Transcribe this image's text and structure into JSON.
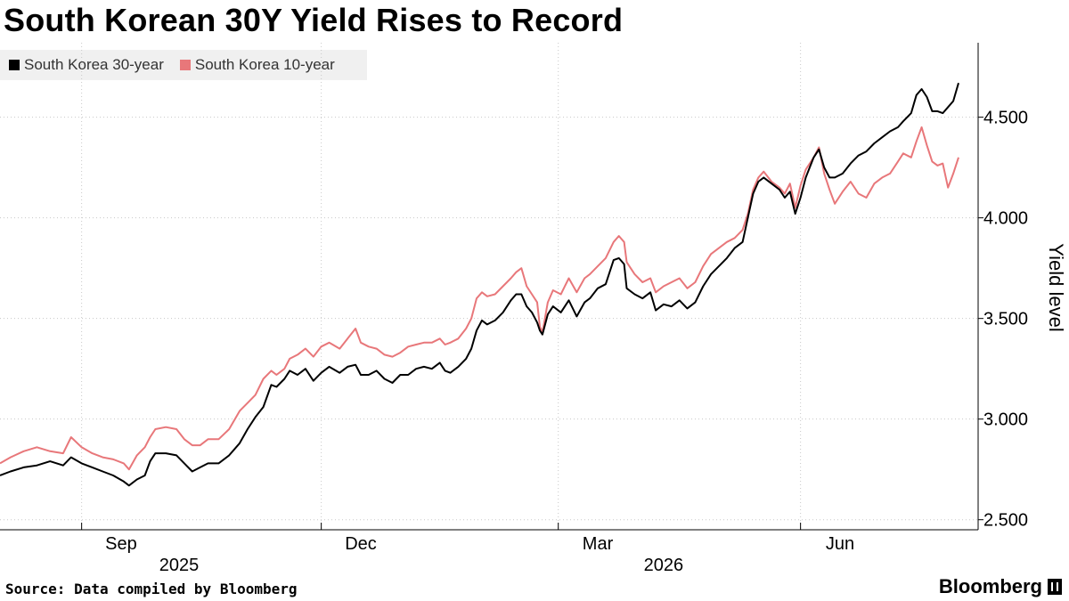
{
  "header": {
    "title": "South Korean 30Y Yield Rises to Record"
  },
  "legend": {
    "items": [
      {
        "label": "South Korea 30-year",
        "color": "#000000"
      },
      {
        "label": "South Korea 10-year",
        "color": "#e8777a"
      }
    ]
  },
  "footer": {
    "source": "Source: Data compiled by Bloomberg",
    "brand": "Bloomberg"
  },
  "chart_data": {
    "type": "line",
    "title": "South Korean 30Y Yield Rises to Record",
    "ylabel": "Yield level",
    "xlabel": "",
    "ylim": [
      2.45,
      4.87
    ],
    "y_ticks": [
      2.5,
      3.0,
      3.5,
      4.0,
      4.5
    ],
    "y_tick_labels": [
      "2.500",
      "3.000",
      "3.500",
      "4.000",
      "4.500"
    ],
    "x_range": [
      "2025-08-01",
      "2026-07-31"
    ],
    "x_tick_labels": [
      {
        "label": "Sep",
        "date": "2025-09-16"
      },
      {
        "label": "Dec",
        "date": "2025-12-16"
      },
      {
        "label": "Mar",
        "date": "2026-03-16"
      },
      {
        "label": "Jun",
        "date": "2026-06-16"
      }
    ],
    "x_year_labels": [
      {
        "label": "2025",
        "date": "2025-10-08"
      },
      {
        "label": "2026",
        "date": "2026-04-10"
      }
    ],
    "x_dividers": [
      "2025-09-01",
      "2025-12-01",
      "2026-03-01",
      "2026-06-01"
    ],
    "grid": true,
    "legend_position": "top-left",
    "series": [
      {
        "name": "South Korea 30-year",
        "color": "#000000",
        "points": [
          [
            "2025-08-01",
            2.72
          ],
          [
            "2025-08-05",
            2.74
          ],
          [
            "2025-08-10",
            2.76
          ],
          [
            "2025-08-15",
            2.77
          ],
          [
            "2025-08-20",
            2.79
          ],
          [
            "2025-08-25",
            2.77
          ],
          [
            "2025-08-28",
            2.81
          ],
          [
            "2025-09-01",
            2.78
          ],
          [
            "2025-09-05",
            2.76
          ],
          [
            "2025-09-09",
            2.74
          ],
          [
            "2025-09-13",
            2.72
          ],
          [
            "2025-09-17",
            2.69
          ],
          [
            "2025-09-19",
            2.67
          ],
          [
            "2025-09-22",
            2.7
          ],
          [
            "2025-09-25",
            2.72
          ],
          [
            "2025-09-27",
            2.79
          ],
          [
            "2025-09-29",
            2.83
          ],
          [
            "2025-10-03",
            2.83
          ],
          [
            "2025-10-07",
            2.82
          ],
          [
            "2025-10-10",
            2.78
          ],
          [
            "2025-10-13",
            2.74
          ],
          [
            "2025-10-16",
            2.76
          ],
          [
            "2025-10-19",
            2.78
          ],
          [
            "2025-10-23",
            2.78
          ],
          [
            "2025-10-27",
            2.82
          ],
          [
            "2025-10-31",
            2.88
          ],
          [
            "2025-11-03",
            2.95
          ],
          [
            "2025-11-06",
            3.01
          ],
          [
            "2025-11-09",
            3.06
          ],
          [
            "2025-11-12",
            3.17
          ],
          [
            "2025-11-14",
            3.16
          ],
          [
            "2025-11-17",
            3.2
          ],
          [
            "2025-11-19",
            3.24
          ],
          [
            "2025-11-22",
            3.22
          ],
          [
            "2025-11-25",
            3.25
          ],
          [
            "2025-11-28",
            3.19
          ],
          [
            "2025-12-01",
            3.23
          ],
          [
            "2025-12-04",
            3.26
          ],
          [
            "2025-12-08",
            3.23
          ],
          [
            "2025-12-11",
            3.26
          ],
          [
            "2025-12-14",
            3.27
          ],
          [
            "2025-12-16",
            3.22
          ],
          [
            "2025-12-19",
            3.22
          ],
          [
            "2025-12-22",
            3.24
          ],
          [
            "2025-12-25",
            3.2
          ],
          [
            "2025-12-28",
            3.18
          ],
          [
            "2025-12-31",
            3.22
          ],
          [
            "2026-01-03",
            3.22
          ],
          [
            "2026-01-06",
            3.25
          ],
          [
            "2026-01-09",
            3.26
          ],
          [
            "2026-01-12",
            3.25
          ],
          [
            "2026-01-15",
            3.28
          ],
          [
            "2026-01-17",
            3.24
          ],
          [
            "2026-01-19",
            3.23
          ],
          [
            "2026-01-22",
            3.26
          ],
          [
            "2026-01-25",
            3.3
          ],
          [
            "2026-01-27",
            3.35
          ],
          [
            "2026-01-29",
            3.44
          ],
          [
            "2026-01-31",
            3.49
          ],
          [
            "2026-02-02",
            3.47
          ],
          [
            "2026-02-05",
            3.49
          ],
          [
            "2026-02-08",
            3.53
          ],
          [
            "2026-02-11",
            3.59
          ],
          [
            "2026-02-13",
            3.62
          ],
          [
            "2026-02-15",
            3.62
          ],
          [
            "2026-02-17",
            3.56
          ],
          [
            "2026-02-19",
            3.53
          ],
          [
            "2026-02-21",
            3.48
          ],
          [
            "2026-02-22",
            3.44
          ],
          [
            "2026-02-23",
            3.42
          ],
          [
            "2026-02-25",
            3.52
          ],
          [
            "2026-02-27",
            3.56
          ],
          [
            "2026-03-02",
            3.53
          ],
          [
            "2026-03-05",
            3.59
          ],
          [
            "2026-03-08",
            3.51
          ],
          [
            "2026-03-11",
            3.58
          ],
          [
            "2026-03-13",
            3.6
          ],
          [
            "2026-03-16",
            3.65
          ],
          [
            "2026-03-19",
            3.67
          ],
          [
            "2026-03-22",
            3.79
          ],
          [
            "2026-03-24",
            3.8
          ],
          [
            "2026-03-26",
            3.77
          ],
          [
            "2026-03-27",
            3.65
          ],
          [
            "2026-03-30",
            3.62
          ],
          [
            "2026-04-02",
            3.6
          ],
          [
            "2026-04-05",
            3.63
          ],
          [
            "2026-04-07",
            3.54
          ],
          [
            "2026-04-10",
            3.57
          ],
          [
            "2026-04-13",
            3.56
          ],
          [
            "2026-04-16",
            3.59
          ],
          [
            "2026-04-19",
            3.55
          ],
          [
            "2026-04-22",
            3.58
          ],
          [
            "2026-04-25",
            3.66
          ],
          [
            "2026-04-28",
            3.72
          ],
          [
            "2026-05-01",
            3.76
          ],
          [
            "2026-05-04",
            3.8
          ],
          [
            "2026-05-07",
            3.85
          ],
          [
            "2026-05-10",
            3.88
          ],
          [
            "2026-05-12",
            4.0
          ],
          [
            "2026-05-14",
            4.12
          ],
          [
            "2026-05-16",
            4.18
          ],
          [
            "2026-05-18",
            4.2
          ],
          [
            "2026-05-21",
            4.17
          ],
          [
            "2026-05-24",
            4.14
          ],
          [
            "2026-05-26",
            4.1
          ],
          [
            "2026-05-28",
            4.13
          ],
          [
            "2026-05-30",
            4.02
          ],
          [
            "2026-06-01",
            4.1
          ],
          [
            "2026-06-03",
            4.2
          ],
          [
            "2026-06-06",
            4.3
          ],
          [
            "2026-06-08",
            4.34
          ],
          [
            "2026-06-10",
            4.25
          ],
          [
            "2026-06-12",
            4.2
          ],
          [
            "2026-06-14",
            4.2
          ],
          [
            "2026-06-17",
            4.22
          ],
          [
            "2026-06-20",
            4.27
          ],
          [
            "2026-06-23",
            4.31
          ],
          [
            "2026-06-26",
            4.33
          ],
          [
            "2026-06-29",
            4.37
          ],
          [
            "2026-07-02",
            4.4
          ],
          [
            "2026-07-05",
            4.43
          ],
          [
            "2026-07-08",
            4.45
          ],
          [
            "2026-07-10",
            4.48
          ],
          [
            "2026-07-13",
            4.52
          ],
          [
            "2026-07-15",
            4.61
          ],
          [
            "2026-07-17",
            4.64
          ],
          [
            "2026-07-19",
            4.6
          ],
          [
            "2026-07-21",
            4.53
          ],
          [
            "2026-07-23",
            4.53
          ],
          [
            "2026-07-25",
            4.52
          ],
          [
            "2026-07-27",
            4.55
          ],
          [
            "2026-07-29",
            4.58
          ],
          [
            "2026-07-31",
            4.67
          ]
        ]
      },
      {
        "name": "South Korea 10-year",
        "color": "#e8777a",
        "points": [
          [
            "2025-08-01",
            2.78
          ],
          [
            "2025-08-05",
            2.81
          ],
          [
            "2025-08-10",
            2.84
          ],
          [
            "2025-08-15",
            2.86
          ],
          [
            "2025-08-20",
            2.84
          ],
          [
            "2025-08-25",
            2.83
          ],
          [
            "2025-08-28",
            2.91
          ],
          [
            "2025-09-01",
            2.86
          ],
          [
            "2025-09-05",
            2.83
          ],
          [
            "2025-09-09",
            2.81
          ],
          [
            "2025-09-13",
            2.8
          ],
          [
            "2025-09-17",
            2.78
          ],
          [
            "2025-09-19",
            2.75
          ],
          [
            "2025-09-22",
            2.82
          ],
          [
            "2025-09-25",
            2.86
          ],
          [
            "2025-09-27",
            2.91
          ],
          [
            "2025-09-29",
            2.95
          ],
          [
            "2025-10-03",
            2.96
          ],
          [
            "2025-10-07",
            2.95
          ],
          [
            "2025-10-10",
            2.9
          ],
          [
            "2025-10-13",
            2.87
          ],
          [
            "2025-10-16",
            2.87
          ],
          [
            "2025-10-19",
            2.9
          ],
          [
            "2025-10-23",
            2.9
          ],
          [
            "2025-10-27",
            2.95
          ],
          [
            "2025-10-31",
            3.04
          ],
          [
            "2025-11-03",
            3.08
          ],
          [
            "2025-11-06",
            3.12
          ],
          [
            "2025-11-09",
            3.2
          ],
          [
            "2025-11-12",
            3.24
          ],
          [
            "2025-11-14",
            3.22
          ],
          [
            "2025-11-17",
            3.25
          ],
          [
            "2025-11-19",
            3.3
          ],
          [
            "2025-11-22",
            3.32
          ],
          [
            "2025-11-25",
            3.35
          ],
          [
            "2025-11-28",
            3.31
          ],
          [
            "2025-12-01",
            3.36
          ],
          [
            "2025-12-04",
            3.38
          ],
          [
            "2025-12-08",
            3.35
          ],
          [
            "2025-12-11",
            3.4
          ],
          [
            "2025-12-14",
            3.45
          ],
          [
            "2025-12-16",
            3.38
          ],
          [
            "2025-12-19",
            3.36
          ],
          [
            "2025-12-22",
            3.35
          ],
          [
            "2025-12-25",
            3.32
          ],
          [
            "2025-12-28",
            3.31
          ],
          [
            "2025-12-31",
            3.33
          ],
          [
            "2026-01-03",
            3.36
          ],
          [
            "2026-01-06",
            3.37
          ],
          [
            "2026-01-09",
            3.38
          ],
          [
            "2026-01-12",
            3.38
          ],
          [
            "2026-01-15",
            3.4
          ],
          [
            "2026-01-17",
            3.37
          ],
          [
            "2026-01-19",
            3.38
          ],
          [
            "2026-01-22",
            3.4
          ],
          [
            "2026-01-25",
            3.45
          ],
          [
            "2026-01-27",
            3.5
          ],
          [
            "2026-01-29",
            3.6
          ],
          [
            "2026-01-31",
            3.63
          ],
          [
            "2026-02-02",
            3.61
          ],
          [
            "2026-02-05",
            3.62
          ],
          [
            "2026-02-08",
            3.66
          ],
          [
            "2026-02-11",
            3.7
          ],
          [
            "2026-02-13",
            3.73
          ],
          [
            "2026-02-15",
            3.75
          ],
          [
            "2026-02-17",
            3.66
          ],
          [
            "2026-02-19",
            3.62
          ],
          [
            "2026-02-21",
            3.58
          ],
          [
            "2026-02-22",
            3.46
          ],
          [
            "2026-02-23",
            3.43
          ],
          [
            "2026-02-25",
            3.58
          ],
          [
            "2026-02-27",
            3.64
          ],
          [
            "2026-03-02",
            3.62
          ],
          [
            "2026-03-05",
            3.7
          ],
          [
            "2026-03-08",
            3.63
          ],
          [
            "2026-03-11",
            3.7
          ],
          [
            "2026-03-13",
            3.72
          ],
          [
            "2026-03-16",
            3.76
          ],
          [
            "2026-03-19",
            3.8
          ],
          [
            "2026-03-22",
            3.88
          ],
          [
            "2026-03-24",
            3.91
          ],
          [
            "2026-03-26",
            3.88
          ],
          [
            "2026-03-27",
            3.78
          ],
          [
            "2026-03-30",
            3.72
          ],
          [
            "2026-04-02",
            3.68
          ],
          [
            "2026-04-05",
            3.7
          ],
          [
            "2026-04-07",
            3.63
          ],
          [
            "2026-04-10",
            3.66
          ],
          [
            "2026-04-13",
            3.68
          ],
          [
            "2026-04-16",
            3.7
          ],
          [
            "2026-04-19",
            3.65
          ],
          [
            "2026-04-22",
            3.68
          ],
          [
            "2026-04-25",
            3.76
          ],
          [
            "2026-04-28",
            3.82
          ],
          [
            "2026-05-01",
            3.85
          ],
          [
            "2026-05-04",
            3.88
          ],
          [
            "2026-05-07",
            3.9
          ],
          [
            "2026-05-10",
            3.94
          ],
          [
            "2026-05-12",
            4.02
          ],
          [
            "2026-05-14",
            4.14
          ],
          [
            "2026-05-16",
            4.2
          ],
          [
            "2026-05-18",
            4.23
          ],
          [
            "2026-05-21",
            4.18
          ],
          [
            "2026-05-24",
            4.15
          ],
          [
            "2026-05-26",
            4.12
          ],
          [
            "2026-05-28",
            4.17
          ],
          [
            "2026-05-30",
            4.05
          ],
          [
            "2026-06-01",
            4.16
          ],
          [
            "2026-06-03",
            4.24
          ],
          [
            "2026-06-06",
            4.3
          ],
          [
            "2026-06-08",
            4.35
          ],
          [
            "2026-06-10",
            4.22
          ],
          [
            "2026-06-12",
            4.14
          ],
          [
            "2026-06-14",
            4.07
          ],
          [
            "2026-06-17",
            4.13
          ],
          [
            "2026-06-20",
            4.18
          ],
          [
            "2026-06-23",
            4.12
          ],
          [
            "2026-06-26",
            4.1
          ],
          [
            "2026-06-29",
            4.17
          ],
          [
            "2026-07-02",
            4.2
          ],
          [
            "2026-07-05",
            4.22
          ],
          [
            "2026-07-08",
            4.28
          ],
          [
            "2026-07-10",
            4.32
          ],
          [
            "2026-07-13",
            4.3
          ],
          [
            "2026-07-15",
            4.38
          ],
          [
            "2026-07-17",
            4.45
          ],
          [
            "2026-07-19",
            4.36
          ],
          [
            "2026-07-21",
            4.28
          ],
          [
            "2026-07-23",
            4.26
          ],
          [
            "2026-07-25",
            4.27
          ],
          [
            "2026-07-27",
            4.15
          ],
          [
            "2026-07-29",
            4.22
          ],
          [
            "2026-07-31",
            4.3
          ]
        ]
      }
    ]
  }
}
